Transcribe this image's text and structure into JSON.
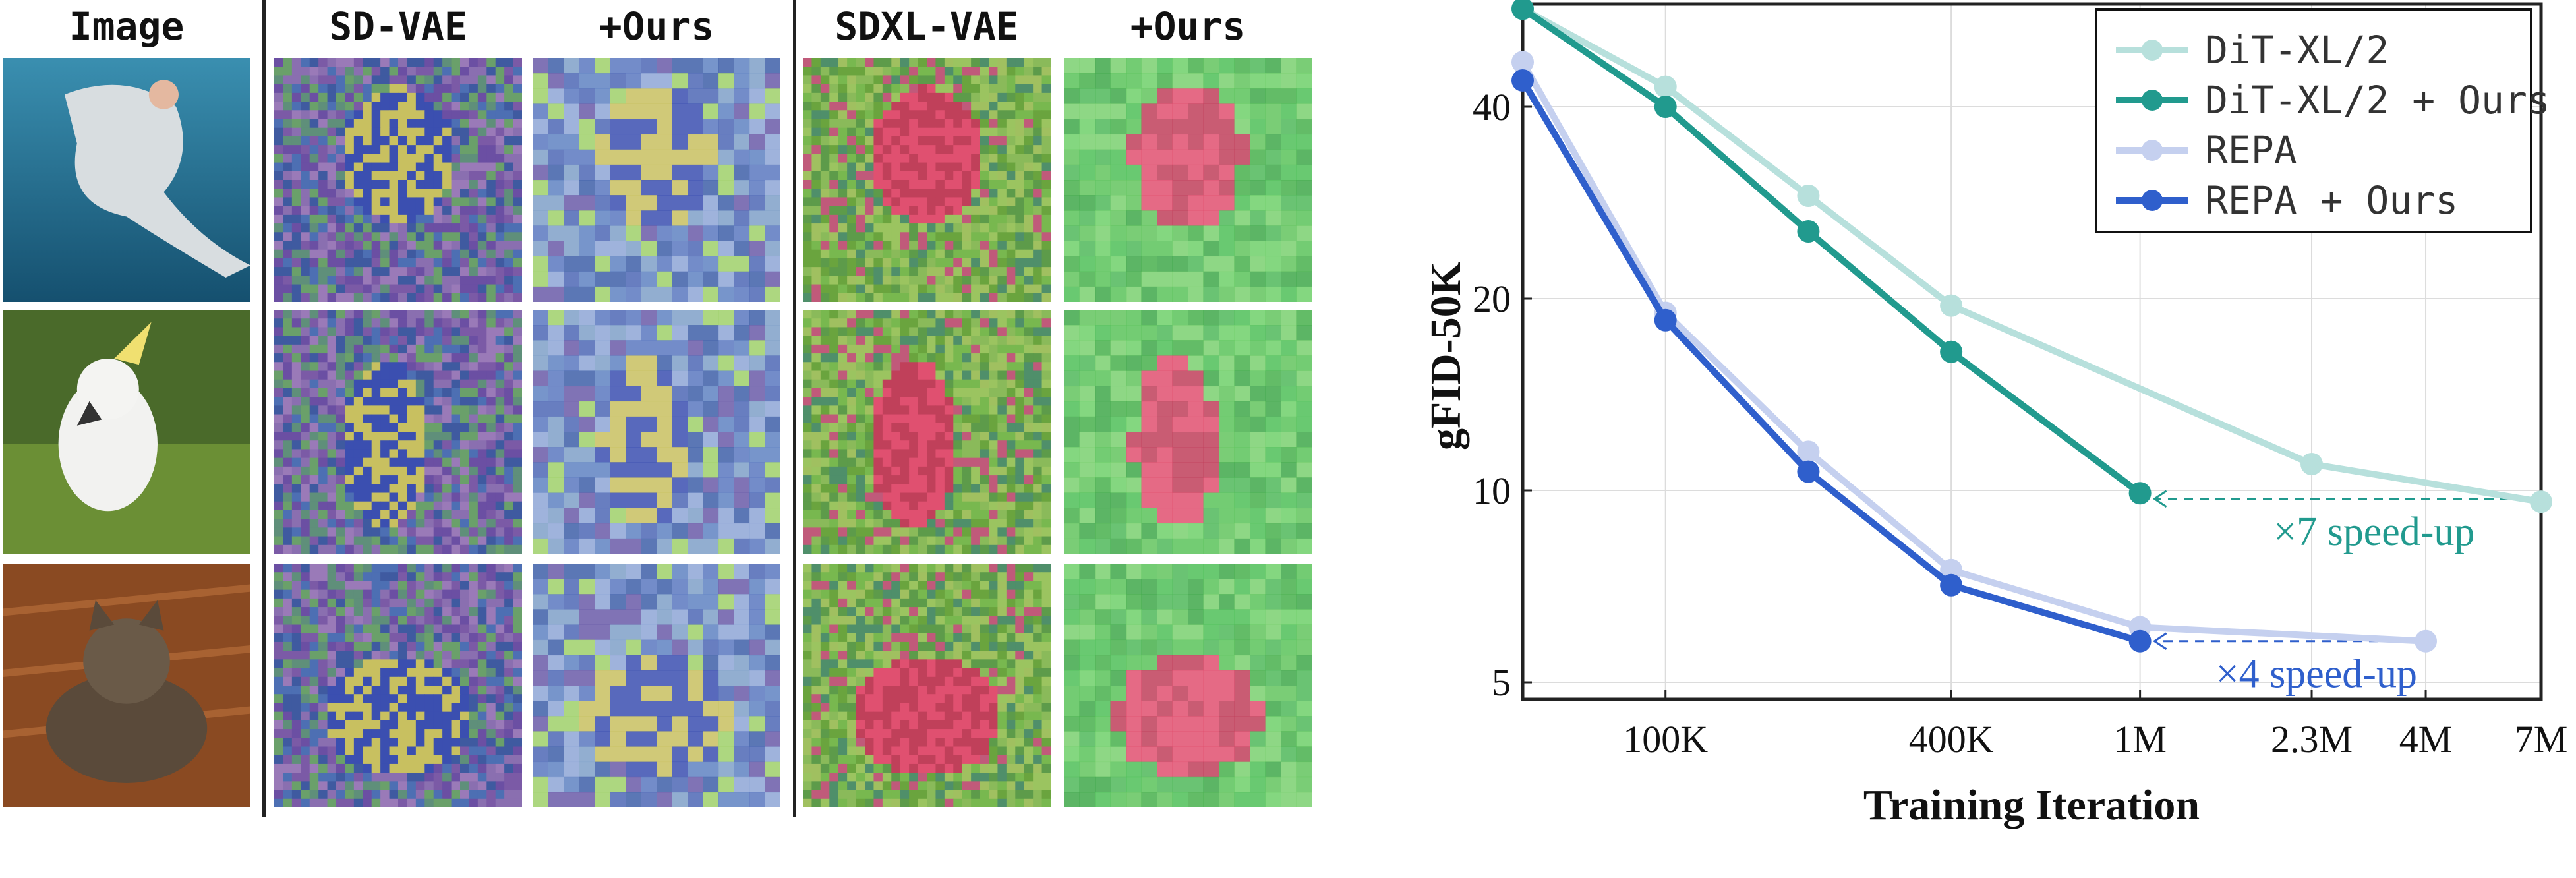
{
  "panel_grid": {
    "columns": [
      "Image",
      "SD-VAE",
      "+Ours",
      "SDXL-VAE",
      "+Ours"
    ],
    "rows": [
      "shark",
      "cockatoo",
      "cat"
    ]
  },
  "chart_data": {
    "type": "line",
    "title": "",
    "xlabel": "Training Iteration",
    "ylabel": "gFID-50K",
    "y_scale": "log",
    "x_scale": "log",
    "ylim": [
      4.7,
      58
    ],
    "xlim": [
      50000,
      7000000
    ],
    "x_ticks": [
      {
        "value": 100000,
        "label": "100K"
      },
      {
        "value": 400000,
        "label": "400K"
      },
      {
        "value": 1000000,
        "label": "1M"
      },
      {
        "value": 2300000,
        "label": "2.3M"
      },
      {
        "value": 4000000,
        "label": "4M"
      },
      {
        "value": 7000000,
        "label": "7M"
      }
    ],
    "y_ticks": [
      {
        "value": 5,
        "label": "5"
      },
      {
        "value": 10,
        "label": "10"
      },
      {
        "value": 20,
        "label": "20"
      },
      {
        "value": 40,
        "label": "40"
      }
    ],
    "grid": true,
    "legend_position": "top-right",
    "series": [
      {
        "name": "DiT-XL/2",
        "color": "#b7e0dc",
        "x": [
          50000,
          100000,
          200000,
          400000,
          2300000,
          7000000
        ],
        "y": [
          57,
          43,
          29,
          19.5,
          11,
          9.6
        ]
      },
      {
        "name": "DiT-XL/2 + Ours",
        "color": "#219a8e",
        "x": [
          50000,
          100000,
          200000,
          400000,
          1000000
        ],
        "y": [
          57,
          40,
          25.5,
          16.5,
          9.9
        ]
      },
      {
        "name": "REPA",
        "color": "#c5d0ef",
        "x": [
          50000,
          100000,
          200000,
          400000,
          1000000,
          4000000
        ],
        "y": [
          47,
          19,
          11.5,
          7.5,
          6.1,
          5.8
        ]
      },
      {
        "name": "REPA + Ours",
        "color": "#2f5fcc",
        "x": [
          50000,
          100000,
          200000,
          400000,
          1000000
        ],
        "y": [
          44,
          18.5,
          10.7,
          7.1,
          5.8
        ]
      }
    ],
    "annotations": [
      {
        "text": "×7 speed-up",
        "color": "#219a8e",
        "from_x": 7000000,
        "to_x": 1000000,
        "y": 9.7
      },
      {
        "text": "×4 speed-up",
        "color": "#2f5fcc",
        "from_x": 4000000,
        "to_x": 1000000,
        "y": 5.8
      }
    ]
  }
}
